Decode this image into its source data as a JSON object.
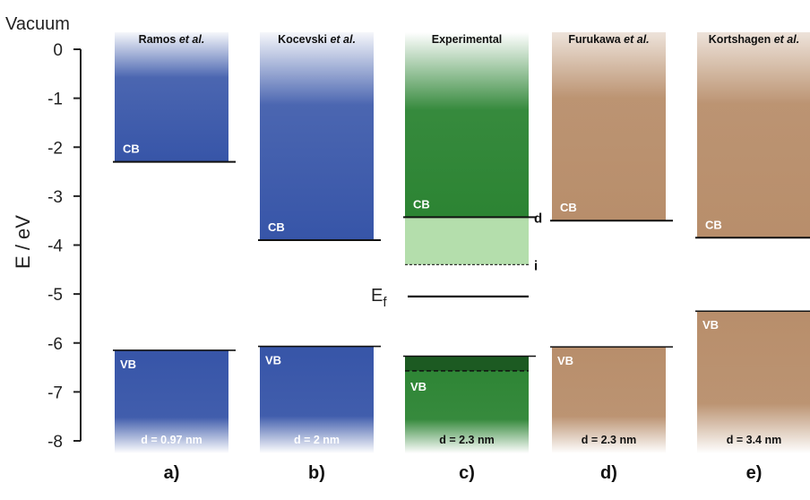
{
  "chart_data": {
    "type": "bar",
    "ylabel": "E / eV",
    "y_top_label": "Vacuum",
    "ylim": [
      -8,
      0
    ],
    "yticks": [
      0,
      -1,
      -2,
      -3,
      -4,
      -5,
      -6,
      -7,
      -8
    ],
    "ytick_labels": [
      "0",
      "-1",
      "-2",
      "-3",
      "-4",
      "-5",
      "-6",
      "-7",
      "-8"
    ],
    "fermi_label": "E",
    "fermi_subscript": "f",
    "fermi_level": -5.05,
    "columns": [
      {
        "letter": "a)",
        "title": "Ramos",
        "title_italic": "et al.",
        "cb": -2.3,
        "vb": -6.15,
        "cb_label": "CB",
        "vb_label": "VB",
        "size": "d = 0.97 nm",
        "color": "#3755a8"
      },
      {
        "letter": "b)",
        "title": "Kocevski",
        "title_italic": "et al.",
        "cb": -3.9,
        "vb": -6.07,
        "cb_label": "CB",
        "vb_label": "VB",
        "size": "d = 2 nm",
        "color": "#3755a8"
      },
      {
        "letter": "c)",
        "title": "Experimental",
        "title_italic": "",
        "cb": -3.43,
        "vb": -6.27,
        "cb_label": "CB",
        "vb_label": "VB",
        "size": "d = 2.3 nm",
        "color": "#2c8433",
        "cb_direct": -3.43,
        "cb_indirect": -4.4,
        "direct_label": "d",
        "indirect_label": "i",
        "vb_dashed": -6.57
      },
      {
        "letter": "d)",
        "title": "Furukawa",
        "title_italic": "et al.",
        "cb": -3.5,
        "vb": -6.08,
        "cb_label": "CB",
        "vb_label": "VB",
        "size": "d = 2.3 nm",
        "color": "#b88e6b"
      },
      {
        "letter": "e)",
        "title": "Kortshagen",
        "title_italic": "et al.",
        "cb": -3.85,
        "vb": -5.35,
        "cb_label": "CB",
        "vb_label": "VB",
        "size": "d = 3.4 nm",
        "color": "#b88e6b"
      }
    ]
  }
}
